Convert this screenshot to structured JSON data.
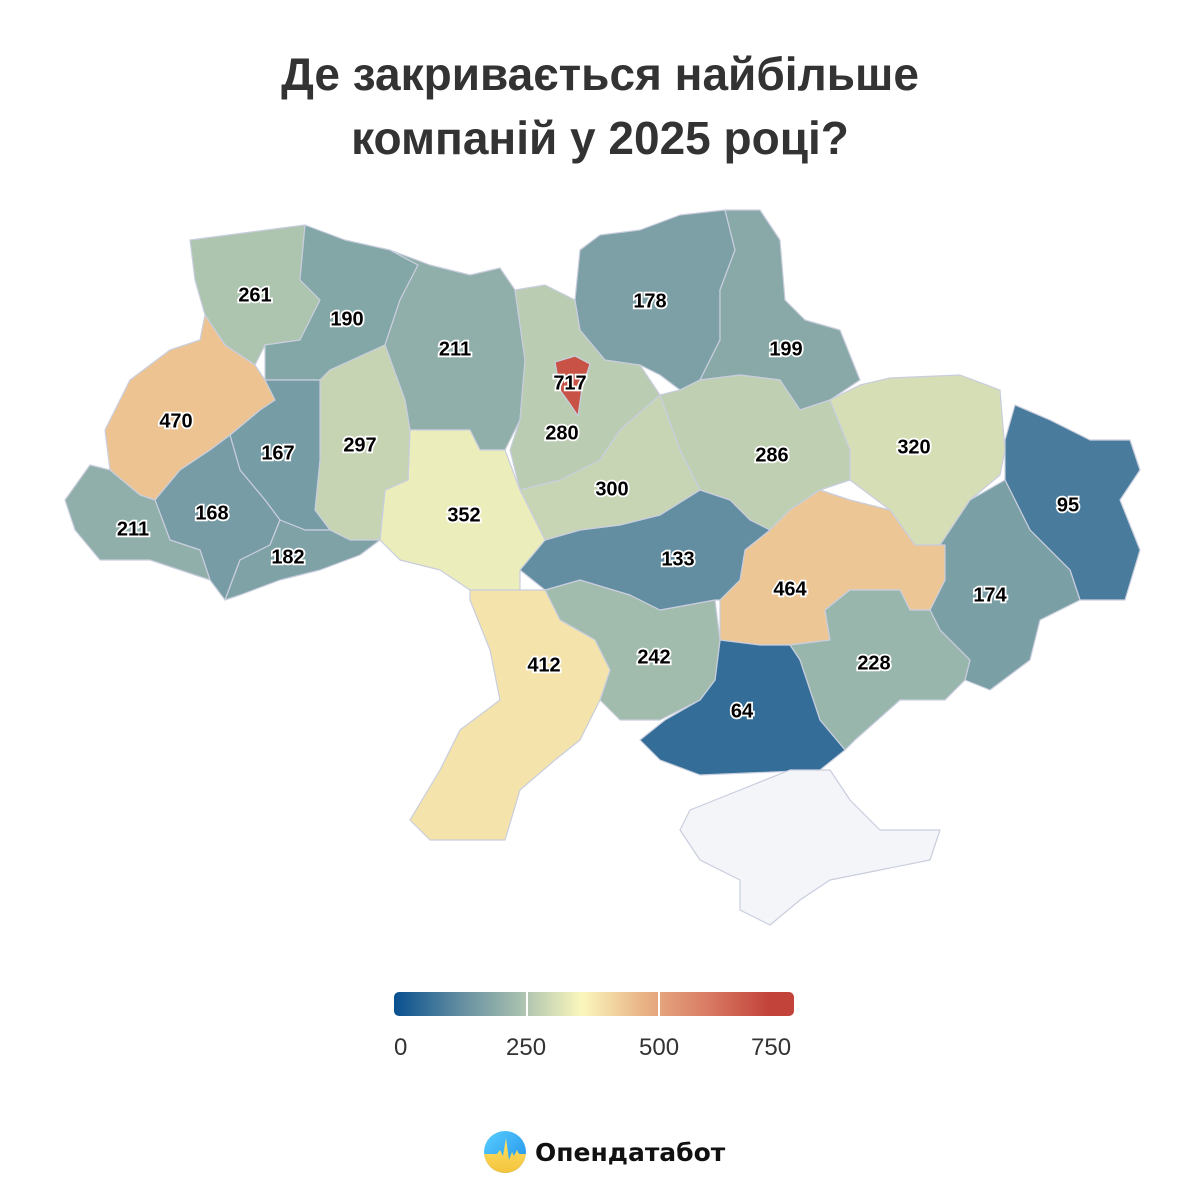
{
  "title": [
    "Де закривається найбільше",
    "компаній у 2025 році?"
  ],
  "map": {
    "regions": [
      {
        "id": "volyn",
        "value": 261
      },
      {
        "id": "rivne",
        "value": 190
      },
      {
        "id": "zhytomyr",
        "value": 211
      },
      {
        "id": "kyiv-oblast",
        "value": 280
      },
      {
        "id": "chernihiv",
        "value": 178
      },
      {
        "id": "sumy",
        "value": 199
      },
      {
        "id": "poltava",
        "value": 286
      },
      {
        "id": "kharkiv",
        "value": 320
      },
      {
        "id": "luhansk",
        "value": 95
      },
      {
        "id": "donetsk",
        "value": 174
      },
      {
        "id": "dnipropetrovsk",
        "value": 464
      },
      {
        "id": "zaporizhzhia",
        "value": 228
      },
      {
        "id": "kherson",
        "value": 64
      },
      {
        "id": "mykolaiv",
        "value": 242
      },
      {
        "id": "kirovohrad",
        "value": 133
      },
      {
        "id": "cherkasy",
        "value": 300
      },
      {
        "id": "vinnytsia",
        "value": 352
      },
      {
        "id": "khmelnytskyi",
        "value": 297
      },
      {
        "id": "ternopil",
        "value": 167
      },
      {
        "id": "lviv",
        "value": 470
      },
      {
        "id": "ivano-frankivsk",
        "value": 168
      },
      {
        "id": "zakarpattia",
        "value": 211
      },
      {
        "id": "chernivtsi",
        "value": 182
      },
      {
        "id": "odesa",
        "value": 412
      },
      {
        "id": "kyiv-city",
        "value": 717
      },
      {
        "id": "crimea",
        "value": null
      }
    ],
    "no_data_color": "#f4f5f8"
  },
  "legend": {
    "min": 0,
    "max": 800,
    "ticks": [
      "0",
      "250",
      "500",
      "750"
    ],
    "stops": [
      {
        "v": 0,
        "c": "#08508f"
      },
      {
        "v": 125,
        "c": "#5e8aa0"
      },
      {
        "v": 250,
        "c": "#a6bfae"
      },
      {
        "v": 375,
        "c": "#fbf7bd"
      },
      {
        "v": 500,
        "c": "#e8b285"
      },
      {
        "v": 625,
        "c": "#d97c65"
      },
      {
        "v": 750,
        "c": "#c2433a"
      },
      {
        "v": 800,
        "c": "#c2433a"
      }
    ]
  },
  "brand": {
    "name": "Опендатабот"
  }
}
